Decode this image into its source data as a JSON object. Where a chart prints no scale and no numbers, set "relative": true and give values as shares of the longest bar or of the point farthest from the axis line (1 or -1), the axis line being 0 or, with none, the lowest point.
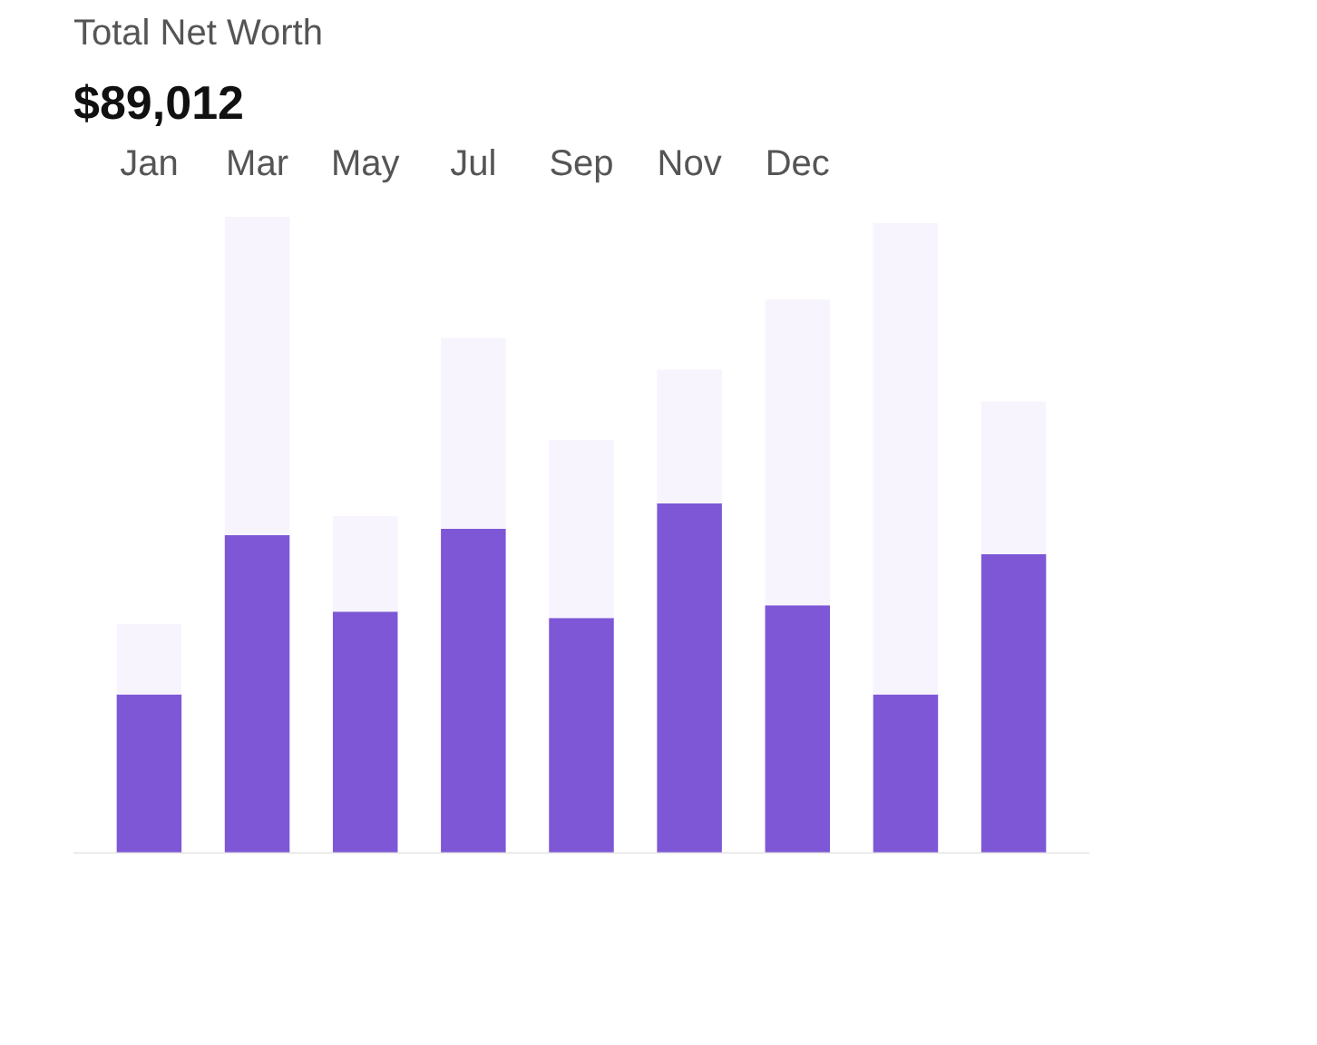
{
  "chart_data": {
    "type": "bar",
    "title": "Total Net Worth",
    "subtitle": "$89,012",
    "relative": true,
    "stacked": true,
    "grid": false,
    "categories": [
      "Jan",
      "Mar",
      "May",
      "Jul",
      "Sep",
      "Nov",
      "Dec",
      null,
      null
    ],
    "series": [
      {
        "color": "#7e57d6",
        "values": [
          0.25,
          0.5,
          0.38,
          0.51,
          0.37,
          0.55,
          0.39,
          0.25,
          0.47
        ]
      },
      {
        "color": "#f7f4fe",
        "values": [
          0.11,
          0.5,
          0.15,
          0.3,
          0.28,
          0.21,
          0.48,
          0.74,
          0.24
        ]
      }
    ]
  }
}
